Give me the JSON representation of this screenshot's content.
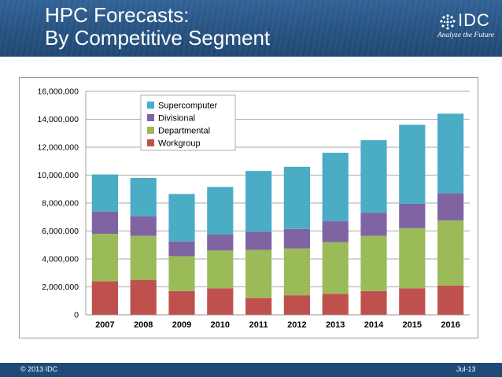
{
  "slide": {
    "title_line1": "HPC Forecasts:",
    "title_line2": "By Competitive Segment",
    "logo_name": "IDC",
    "logo_tagline": "Analyze the Future",
    "footer_copyright": "© 2013 IDC",
    "footer_date": "Jul-13"
  },
  "colors": {
    "header": "#24507f",
    "footer": "#1f4a77"
  },
  "chart_data": {
    "type": "bar",
    "stacked": true,
    "categories": [
      "2007",
      "2008",
      "2009",
      "2010",
      "2011",
      "2012",
      "2013",
      "2014",
      "2015",
      "2016"
    ],
    "series": [
      {
        "name": "Workgroup",
        "color": "#c0504d",
        "values": [
          2400000,
          2500000,
          1700000,
          1900000,
          1200000,
          1400000,
          1500000,
          1700000,
          1900000,
          2100000
        ]
      },
      {
        "name": "Departmental",
        "color": "#9bbb59",
        "values": [
          3400000,
          3150000,
          2500000,
          2700000,
          3450000,
          3350000,
          3700000,
          3950000,
          4300000,
          4650000
        ]
      },
      {
        "name": "Divisional",
        "color": "#8064a2",
        "values": [
          1600000,
          1400000,
          1050000,
          1150000,
          1300000,
          1400000,
          1500000,
          1650000,
          1750000,
          1950000
        ]
      },
      {
        "name": "Supercomputer",
        "color": "#4bacc6",
        "values": [
          2650000,
          2750000,
          3400000,
          3400000,
          4350000,
          4450000,
          4900000,
          5200000,
          5650000,
          5700000
        ]
      }
    ],
    "ylim": [
      0,
      16000000
    ],
    "yticks": [
      0,
      2000000,
      4000000,
      6000000,
      8000000,
      10000000,
      12000000,
      14000000,
      16000000
    ],
    "ytick_labels": [
      "0",
      "2,000,000",
      "4,000,000",
      "6,000,000",
      "8,000,000",
      "10,000,000",
      "12,000,000",
      "14,000,000",
      "16,000,000"
    ],
    "legend_order": [
      "Supercomputer",
      "Divisional",
      "Departmental",
      "Workgroup"
    ],
    "legend_position": "top-left",
    "grid": true
  }
}
